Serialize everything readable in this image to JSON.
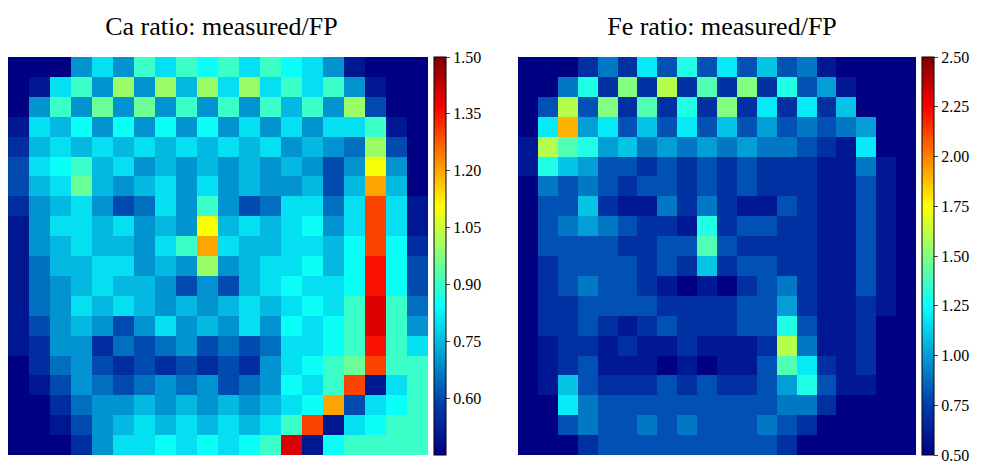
{
  "chart_data": [
    {
      "type": "heatmap",
      "title": "Ca ratio: measured/FP",
      "tick_labels": false,
      "colorbar_range": [
        0.45,
        1.5
      ],
      "colorbar_ticks": [
        {
          "value": 0.6,
          "label": "0.60"
        },
        0.75,
        {
          "value": 0.9,
          "label": "0.90"
        },
        1.05,
        {
          "value": 1.2,
          "label": "1.20"
        },
        1.35,
        {
          "value": 1.5,
          "label": "1.50"
        }
      ],
      "cells": [
        [
          0.45,
          0.45,
          0.45,
          0.7,
          0.8,
          0.7,
          0.9,
          0.8,
          0.9,
          0.85,
          0.9,
          0.8,
          0.9,
          0.85,
          0.8,
          0.7,
          0.5,
          0.45,
          0.45,
          0.45
        ],
        [
          0.45,
          0.5,
          0.8,
          0.9,
          0.7,
          1.0,
          0.7,
          1.0,
          0.75,
          1.0,
          0.8,
          1.0,
          0.8,
          0.9,
          0.8,
          0.9,
          0.7,
          0.5,
          0.45,
          0.45
        ],
        [
          0.45,
          0.7,
          0.9,
          0.7,
          0.95,
          0.7,
          0.95,
          0.7,
          0.9,
          0.7,
          0.9,
          0.7,
          0.9,
          0.75,
          0.9,
          0.7,
          1.0,
          0.6,
          0.45,
          0.45
        ],
        [
          0.5,
          0.8,
          0.75,
          0.85,
          0.7,
          0.85,
          0.7,
          0.85,
          0.7,
          0.85,
          0.7,
          0.8,
          0.7,
          0.8,
          0.7,
          0.8,
          0.8,
          0.9,
          0.5,
          0.45
        ],
        [
          0.55,
          0.75,
          0.8,
          0.75,
          0.8,
          0.75,
          0.8,
          0.75,
          0.8,
          0.75,
          0.8,
          0.75,
          0.8,
          0.7,
          0.75,
          0.7,
          0.65,
          1.0,
          0.6,
          0.45
        ],
        [
          0.6,
          0.8,
          0.85,
          0.9,
          0.75,
          0.8,
          0.7,
          0.75,
          0.7,
          0.75,
          0.7,
          0.75,
          0.7,
          0.75,
          0.7,
          0.6,
          0.7,
          1.1,
          0.7,
          0.45
        ],
        [
          0.6,
          0.75,
          0.8,
          0.95,
          0.75,
          0.7,
          0.75,
          0.8,
          0.7,
          0.8,
          0.7,
          0.75,
          0.7,
          0.7,
          0.75,
          0.6,
          0.75,
          1.2,
          0.75,
          0.45
        ],
        [
          0.55,
          0.7,
          0.75,
          0.8,
          0.7,
          0.6,
          0.65,
          0.8,
          0.7,
          0.9,
          0.7,
          0.6,
          0.65,
          0.8,
          0.8,
          0.65,
          0.8,
          1.3,
          0.8,
          0.5
        ],
        [
          0.5,
          0.7,
          0.8,
          0.8,
          0.75,
          0.8,
          0.7,
          0.75,
          0.7,
          1.1,
          0.75,
          0.8,
          0.75,
          0.8,
          0.85,
          0.7,
          0.8,
          1.3,
          0.8,
          0.5
        ],
        [
          0.5,
          0.7,
          0.75,
          0.8,
          0.75,
          0.75,
          0.7,
          0.8,
          0.9,
          1.2,
          0.8,
          0.75,
          0.75,
          0.8,
          0.8,
          0.75,
          0.85,
          1.3,
          0.85,
          0.55
        ],
        [
          0.5,
          0.65,
          0.75,
          0.75,
          0.8,
          0.8,
          0.7,
          0.75,
          0.7,
          1.0,
          0.7,
          0.75,
          0.8,
          0.8,
          0.85,
          0.75,
          0.85,
          1.35,
          0.85,
          0.6
        ],
        [
          0.5,
          0.65,
          0.7,
          0.75,
          0.8,
          0.75,
          0.75,
          0.7,
          0.6,
          0.7,
          0.6,
          0.75,
          0.8,
          0.85,
          0.8,
          0.8,
          0.85,
          1.35,
          0.85,
          0.6
        ],
        [
          0.5,
          0.65,
          0.7,
          0.8,
          0.75,
          0.8,
          0.75,
          0.7,
          0.75,
          0.7,
          0.75,
          0.8,
          0.75,
          0.8,
          0.85,
          0.8,
          0.9,
          1.4,
          0.9,
          0.65
        ],
        [
          0.5,
          0.6,
          0.7,
          0.75,
          0.7,
          0.6,
          0.7,
          0.8,
          0.7,
          0.75,
          0.7,
          0.8,
          0.7,
          0.85,
          0.8,
          0.85,
          0.9,
          1.4,
          0.9,
          0.7
        ],
        [
          0.5,
          0.55,
          0.7,
          0.7,
          0.55,
          0.65,
          0.6,
          0.65,
          0.7,
          0.6,
          0.65,
          0.6,
          0.65,
          0.8,
          0.8,
          0.85,
          0.9,
          1.35,
          0.9,
          0.8
        ],
        [
          0.45,
          0.55,
          0.65,
          0.7,
          0.6,
          0.55,
          0.6,
          0.55,
          0.6,
          0.55,
          0.6,
          0.55,
          0.7,
          0.8,
          0.85,
          0.9,
          0.95,
          1.3,
          0.9,
          0.9
        ],
        [
          0.45,
          0.5,
          0.6,
          0.7,
          0.65,
          0.6,
          0.65,
          0.7,
          0.65,
          0.7,
          0.6,
          0.65,
          0.7,
          0.85,
          0.8,
          0.9,
          1.3,
          0.5,
          0.8,
          0.9
        ],
        [
          0.45,
          0.45,
          0.55,
          0.65,
          0.7,
          0.7,
          0.75,
          0.7,
          0.75,
          0.7,
          0.75,
          0.7,
          0.75,
          0.8,
          0.85,
          1.2,
          0.6,
          0.8,
          0.85,
          0.9
        ],
        [
          0.45,
          0.45,
          0.5,
          0.6,
          0.7,
          0.75,
          0.8,
          0.75,
          0.8,
          0.75,
          0.8,
          0.75,
          0.8,
          0.9,
          1.3,
          0.5,
          0.8,
          0.85,
          0.9,
          0.9
        ],
        [
          0.45,
          0.45,
          0.45,
          0.55,
          0.7,
          0.8,
          0.8,
          0.85,
          0.8,
          0.85,
          0.8,
          0.85,
          0.9,
          1.4,
          0.5,
          0.85,
          0.9,
          0.9,
          0.9,
          0.9
        ]
      ]
    },
    {
      "type": "heatmap",
      "title": "Fe ratio: measured/FP",
      "tick_labels": false,
      "colorbar_range": [
        0.5,
        2.5
      ],
      "colorbar_ticks": [
        {
          "value": 0.5,
          "label": "0.50"
        },
        0.75,
        {
          "value": 1,
          "label": "1.00"
        },
        1.25,
        {
          "value": 1.5,
          "label": "1.50"
        },
        1.75,
        {
          "value": 2,
          "label": "2.00"
        },
        2.25,
        {
          "value": 2.5,
          "label": "2.50"
        }
      ],
      "cells": [
        [
          0.5,
          0.5,
          0.5,
          0.7,
          0.9,
          0.7,
          1.2,
          0.8,
          1.3,
          0.8,
          1.2,
          0.8,
          1.1,
          0.8,
          0.9,
          0.6,
          0.5,
          0.5,
          0.5,
          0.5
        ],
        [
          0.5,
          0.5,
          0.9,
          1.3,
          0.7,
          1.5,
          0.7,
          1.6,
          0.7,
          1.4,
          0.7,
          1.5,
          0.7,
          1.3,
          0.8,
          1.0,
          0.6,
          0.5,
          0.5,
          0.5
        ],
        [
          0.5,
          0.8,
          1.6,
          0.8,
          1.5,
          0.7,
          1.4,
          0.7,
          1.3,
          0.7,
          1.5,
          0.7,
          1.2,
          0.7,
          1.2,
          0.7,
          1.1,
          0.5,
          0.5,
          0.5
        ],
        [
          0.5,
          1.2,
          1.9,
          1.0,
          1.2,
          0.8,
          1.1,
          0.8,
          1.2,
          0.8,
          1.1,
          0.8,
          1.0,
          0.8,
          0.9,
          0.8,
          0.9,
          1.0,
          0.5,
          0.5
        ],
        [
          0.6,
          1.6,
          1.4,
          1.3,
          1.0,
          1.1,
          0.9,
          1.0,
          0.9,
          1.0,
          0.9,
          1.0,
          0.9,
          0.9,
          0.8,
          0.7,
          0.6,
          1.2,
          0.5,
          0.5
        ],
        [
          0.6,
          1.3,
          1.1,
          1.0,
          0.8,
          0.8,
          0.7,
          0.8,
          0.7,
          0.8,
          0.7,
          0.8,
          0.7,
          0.7,
          0.7,
          0.6,
          0.6,
          0.9,
          0.6,
          0.5
        ],
        [
          0.5,
          0.9,
          0.8,
          0.9,
          0.8,
          0.7,
          0.8,
          0.8,
          0.7,
          0.8,
          0.7,
          0.8,
          0.7,
          0.7,
          0.7,
          0.6,
          0.6,
          0.8,
          0.6,
          0.5
        ],
        [
          0.5,
          0.8,
          0.8,
          1.1,
          0.7,
          0.6,
          0.6,
          0.9,
          0.7,
          0.9,
          0.7,
          0.6,
          0.6,
          0.8,
          0.7,
          0.6,
          0.6,
          0.8,
          0.6,
          0.5
        ],
        [
          0.5,
          0.8,
          0.9,
          1.0,
          0.9,
          0.8,
          0.7,
          0.7,
          0.6,
          1.3,
          0.7,
          0.8,
          0.8,
          0.7,
          0.7,
          0.6,
          0.6,
          0.8,
          0.6,
          0.5
        ],
        [
          0.5,
          0.8,
          0.8,
          0.8,
          0.8,
          0.7,
          0.7,
          0.8,
          0.8,
          1.4,
          0.8,
          0.7,
          0.7,
          0.7,
          0.7,
          0.6,
          0.6,
          0.8,
          0.6,
          0.5
        ],
        [
          0.5,
          0.7,
          0.8,
          0.8,
          0.8,
          0.8,
          0.7,
          0.8,
          0.7,
          1.1,
          0.7,
          0.8,
          0.8,
          0.7,
          0.7,
          0.6,
          0.6,
          0.8,
          0.6,
          0.5
        ],
        [
          0.5,
          0.7,
          0.8,
          0.9,
          0.8,
          0.8,
          0.7,
          0.6,
          0.5,
          0.6,
          0.5,
          0.7,
          0.8,
          0.9,
          0.7,
          0.6,
          0.6,
          0.8,
          0.6,
          0.5
        ],
        [
          0.5,
          0.7,
          0.7,
          0.8,
          0.8,
          0.8,
          0.8,
          0.7,
          0.7,
          0.7,
          0.7,
          0.8,
          0.8,
          1.0,
          0.7,
          0.6,
          0.6,
          0.7,
          0.6,
          0.5
        ],
        [
          0.5,
          0.7,
          0.7,
          0.8,
          0.7,
          0.6,
          0.7,
          0.8,
          0.7,
          0.7,
          0.7,
          0.8,
          0.8,
          1.3,
          0.8,
          0.6,
          0.6,
          0.7,
          0.5,
          0.5
        ],
        [
          0.5,
          0.6,
          0.7,
          0.7,
          0.6,
          0.7,
          0.6,
          0.6,
          0.7,
          0.6,
          0.6,
          0.6,
          0.7,
          1.6,
          0.9,
          0.6,
          0.6,
          0.7,
          0.5,
          0.5
        ],
        [
          0.5,
          0.6,
          0.7,
          0.8,
          0.6,
          0.6,
          0.6,
          0.5,
          0.6,
          0.5,
          0.6,
          0.6,
          0.8,
          1.4,
          1.2,
          0.7,
          0.6,
          0.7,
          0.5,
          0.5
        ],
        [
          0.5,
          0.6,
          1.1,
          0.8,
          0.7,
          0.7,
          0.7,
          0.8,
          0.7,
          0.8,
          0.7,
          0.7,
          0.8,
          1.0,
          1.3,
          0.8,
          0.6,
          0.6,
          0.5,
          0.5
        ],
        [
          0.5,
          0.5,
          1.2,
          0.9,
          0.8,
          0.8,
          0.8,
          0.8,
          0.8,
          0.8,
          0.8,
          0.8,
          0.8,
          0.9,
          0.9,
          0.7,
          0.5,
          0.5,
          0.5,
          0.5
        ],
        [
          0.5,
          0.5,
          0.8,
          0.9,
          0.8,
          0.8,
          0.9,
          0.8,
          0.9,
          0.8,
          0.8,
          0.8,
          0.9,
          0.8,
          0.7,
          0.5,
          0.5,
          0.5,
          0.5,
          0.5
        ],
        [
          0.5,
          0.5,
          0.5,
          0.7,
          0.8,
          0.8,
          0.8,
          0.8,
          0.8,
          0.8,
          0.8,
          0.8,
          0.8,
          0.7,
          0.5,
          0.5,
          0.5,
          0.5,
          0.5,
          0.5
        ]
      ]
    }
  ]
}
